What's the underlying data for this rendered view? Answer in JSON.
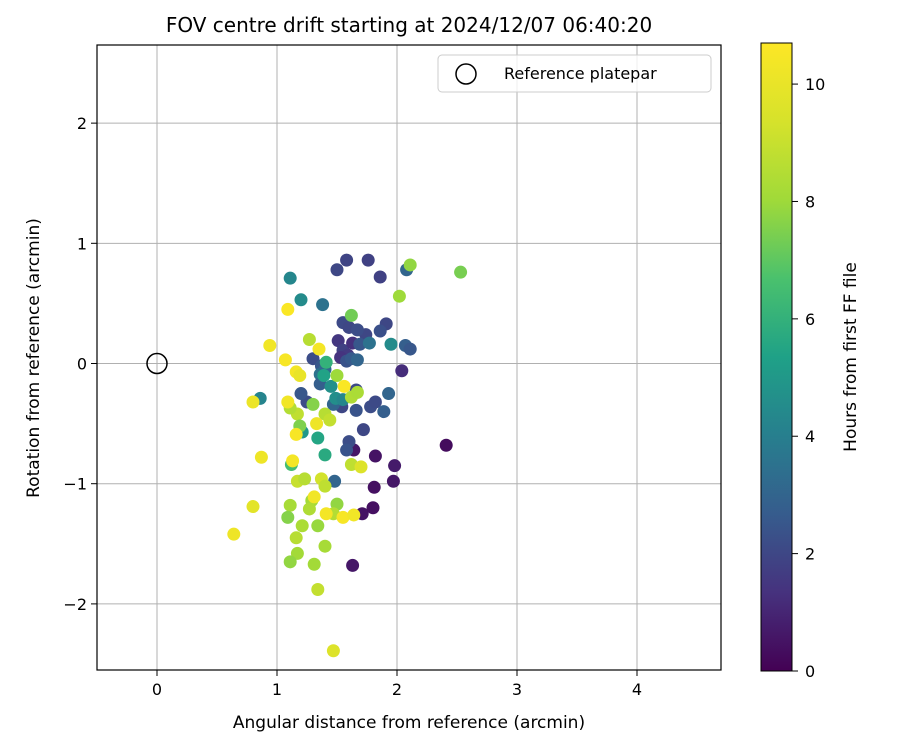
{
  "chart_data": {
    "type": "scatter",
    "title": "FOV centre drift starting at 2024/12/07 06:40:20",
    "xlabel": "Angular distance from reference (arcmin)",
    "ylabel": "Rotation from reference (arcmin)",
    "xlim": [
      -0.5,
      4.7
    ],
    "ylim": [
      -2.55,
      2.65
    ],
    "x_ticks": [
      0,
      1,
      2,
      3,
      4
    ],
    "y_ticks": [
      -2,
      -1,
      0,
      1,
      2
    ],
    "grid": true,
    "legend": {
      "position": "top-right",
      "entries": [
        "Reference platepar"
      ]
    },
    "reference_point": {
      "x": 0,
      "y": 0,
      "label": "Reference platepar"
    },
    "colorbar": {
      "label": "Hours from first FF file",
      "range": [
        0,
        10.7
      ],
      "ticks": [
        0,
        2,
        4,
        6,
        8,
        10
      ],
      "colormap": "viridis"
    },
    "points": [
      {
        "x": 2.41,
        "y": -0.68,
        "h": 0.3
      },
      {
        "x": 1.63,
        "y": -1.68,
        "h": 0.6
      },
      {
        "x": 1.71,
        "y": -1.25,
        "h": 0.5
      },
      {
        "x": 1.8,
        "y": -1.2,
        "h": 0.4
      },
      {
        "x": 1.81,
        "y": -1.03,
        "h": 0.4
      },
      {
        "x": 1.97,
        "y": -0.98,
        "h": 0.6
      },
      {
        "x": 1.98,
        "y": -0.85,
        "h": 0.7
      },
      {
        "x": 1.82,
        "y": -0.77,
        "h": 0.5
      },
      {
        "x": 1.64,
        "y": -0.72,
        "h": 0.6
      },
      {
        "x": 2.04,
        "y": -0.06,
        "h": 1.2
      },
      {
        "x": 1.6,
        "y": -0.65,
        "h": 2.2
      },
      {
        "x": 1.72,
        "y": -0.55,
        "h": 2.0
      },
      {
        "x": 1.58,
        "y": -0.72,
        "h": 2.4
      },
      {
        "x": 1.54,
        "y": -0.36,
        "h": 2.0
      },
      {
        "x": 1.66,
        "y": -0.39,
        "h": 2.4
      },
      {
        "x": 1.78,
        "y": -0.36,
        "h": 2.2
      },
      {
        "x": 1.82,
        "y": -0.32,
        "h": 2.1
      },
      {
        "x": 1.89,
        "y": -0.4,
        "h": 2.8
      },
      {
        "x": 1.93,
        "y": -0.25,
        "h": 3.0
      },
      {
        "x": 1.66,
        "y": -0.22,
        "h": 2.1
      },
      {
        "x": 1.58,
        "y": 0.86,
        "h": 1.9
      },
      {
        "x": 1.5,
        "y": 0.78,
        "h": 2.0
      },
      {
        "x": 1.76,
        "y": 0.86,
        "h": 1.8
      },
      {
        "x": 1.86,
        "y": 0.72,
        "h": 1.8
      },
      {
        "x": 2.08,
        "y": 0.78,
        "h": 3.0
      },
      {
        "x": 1.55,
        "y": 0.34,
        "h": 2.1
      },
      {
        "x": 1.6,
        "y": 0.3,
        "h": 2.0
      },
      {
        "x": 1.91,
        "y": 0.33,
        "h": 2.0
      },
      {
        "x": 1.86,
        "y": 0.27,
        "h": 2.3
      },
      {
        "x": 1.74,
        "y": 0.24,
        "h": 2.0
      },
      {
        "x": 1.67,
        "y": 0.28,
        "h": 2.2
      },
      {
        "x": 1.51,
        "y": 0.19,
        "h": 1.5
      },
      {
        "x": 1.55,
        "y": 0.11,
        "h": 1.8
      },
      {
        "x": 1.59,
        "y": 0.07,
        "h": 1.6
      },
      {
        "x": 1.53,
        "y": 0.05,
        "h": 1.4
      },
      {
        "x": 1.63,
        "y": 0.17,
        "h": 1.3
      },
      {
        "x": 1.69,
        "y": 0.16,
        "h": 2.5
      },
      {
        "x": 1.58,
        "y": 0.02,
        "h": 2.4
      },
      {
        "x": 1.62,
        "y": 0.04,
        "h": 2.6
      },
      {
        "x": 1.67,
        "y": 0.03,
        "h": 3.0
      },
      {
        "x": 2.07,
        "y": 0.15,
        "h": 2.8
      },
      {
        "x": 2.11,
        "y": 0.12,
        "h": 2.5
      },
      {
        "x": 1.77,
        "y": 0.17,
        "h": 3.5
      },
      {
        "x": 1.3,
        "y": 0.04,
        "h": 2.2
      },
      {
        "x": 1.37,
        "y": -0.02,
        "h": 2.5
      },
      {
        "x": 1.36,
        "y": -0.09,
        "h": 3.5
      },
      {
        "x": 1.36,
        "y": -0.17,
        "h": 2.8
      },
      {
        "x": 1.4,
        "y": -0.05,
        "h": 3.2
      },
      {
        "x": 1.47,
        "y": -0.34,
        "h": 3.0
      },
      {
        "x": 1.25,
        "y": -0.32,
        "h": 2.2
      },
      {
        "x": 1.2,
        "y": -0.25,
        "h": 2.5
      },
      {
        "x": 1.48,
        "y": -0.98,
        "h": 3.0
      },
      {
        "x": 1.38,
        "y": 0.49,
        "h": 3.5
      },
      {
        "x": 1.11,
        "y": 0.71,
        "h": 4.3
      },
      {
        "x": 1.2,
        "y": 0.53,
        "h": 4.5
      },
      {
        "x": 1.95,
        "y": 0.16,
        "h": 4.5
      },
      {
        "x": 0.86,
        "y": -0.29,
        "h": 4.2
      },
      {
        "x": 1.49,
        "y": -0.29,
        "h": 4.6
      },
      {
        "x": 1.55,
        "y": -0.3,
        "h": 4.3
      },
      {
        "x": 1.39,
        "y": -0.1,
        "h": 5.4
      },
      {
        "x": 1.45,
        "y": -0.19,
        "h": 4.7
      },
      {
        "x": 1.34,
        "y": -0.62,
        "h": 5.5
      },
      {
        "x": 1.4,
        "y": -0.76,
        "h": 5.7
      },
      {
        "x": 1.41,
        "y": 0.01,
        "h": 6.0
      },
      {
        "x": 1.21,
        "y": -0.57,
        "h": 5.0
      },
      {
        "x": 1.12,
        "y": -0.84,
        "h": 6.5
      },
      {
        "x": 2.53,
        "y": 0.76,
        "h": 7.4
      },
      {
        "x": 2.11,
        "y": 0.82,
        "h": 7.8
      },
      {
        "x": 2.02,
        "y": 0.56,
        "h": 8.0
      },
      {
        "x": 1.62,
        "y": 0.4,
        "h": 7.3
      },
      {
        "x": 1.27,
        "y": 0.2,
        "h": 8.6
      },
      {
        "x": 1.5,
        "y": -0.1,
        "h": 8.0
      },
      {
        "x": 1.62,
        "y": -0.28,
        "h": 8.4
      },
      {
        "x": 1.67,
        "y": -0.24,
        "h": 8.3
      },
      {
        "x": 1.4,
        "y": -0.42,
        "h": 8.6
      },
      {
        "x": 1.44,
        "y": -0.47,
        "h": 8.9
      },
      {
        "x": 1.3,
        "y": -0.34,
        "h": 7.6
      },
      {
        "x": 1.17,
        "y": -0.42,
        "h": 8.8
      },
      {
        "x": 1.19,
        "y": -0.52,
        "h": 7.5
      },
      {
        "x": 1.11,
        "y": -0.37,
        "h": 8.5
      },
      {
        "x": 1.62,
        "y": -0.84,
        "h": 8.8
      },
      {
        "x": 1.7,
        "y": -0.86,
        "h": 9.6
      },
      {
        "x": 1.17,
        "y": -0.98,
        "h": 9.0
      },
      {
        "x": 1.23,
        "y": -0.96,
        "h": 8.6
      },
      {
        "x": 1.29,
        "y": -1.14,
        "h": 8.1
      },
      {
        "x": 1.37,
        "y": -0.96,
        "h": 9.3
      },
      {
        "x": 1.4,
        "y": -1.02,
        "h": 8.8
      },
      {
        "x": 1.27,
        "y": -1.21,
        "h": 8.4
      },
      {
        "x": 1.11,
        "y": -1.18,
        "h": 8.2
      },
      {
        "x": 1.09,
        "y": -1.28,
        "h": 7.6
      },
      {
        "x": 1.21,
        "y": -1.35,
        "h": 8.3
      },
      {
        "x": 1.34,
        "y": -1.35,
        "h": 7.9
      },
      {
        "x": 1.5,
        "y": -1.17,
        "h": 7.8
      },
      {
        "x": 1.47,
        "y": -1.25,
        "h": 8.5
      },
      {
        "x": 1.16,
        "y": -1.45,
        "h": 8.6
      },
      {
        "x": 1.17,
        "y": -1.58,
        "h": 8.1
      },
      {
        "x": 1.11,
        "y": -1.65,
        "h": 7.8
      },
      {
        "x": 1.31,
        "y": -1.67,
        "h": 8.1
      },
      {
        "x": 1.4,
        "y": -1.52,
        "h": 8.2
      },
      {
        "x": 1.34,
        "y": -1.88,
        "h": 8.9
      },
      {
        "x": 1.47,
        "y": -2.39,
        "h": 9.6
      },
      {
        "x": 1.09,
        "y": 0.45,
        "h": 10.6
      },
      {
        "x": 0.94,
        "y": 0.15,
        "h": 10.3
      },
      {
        "x": 1.07,
        "y": 0.03,
        "h": 10.5
      },
      {
        "x": 1.16,
        "y": -0.07,
        "h": 10.4
      },
      {
        "x": 1.19,
        "y": -0.1,
        "h": 10.0
      },
      {
        "x": 1.35,
        "y": 0.12,
        "h": 10.4
      },
      {
        "x": 1.56,
        "y": -0.19,
        "h": 10.6
      },
      {
        "x": 0.8,
        "y": -0.32,
        "h": 10.1
      },
      {
        "x": 1.09,
        "y": -0.32,
        "h": 10.3
      },
      {
        "x": 1.33,
        "y": -0.5,
        "h": 10.2
      },
      {
        "x": 1.16,
        "y": -0.59,
        "h": 10.5
      },
      {
        "x": 0.87,
        "y": -0.78,
        "h": 10.2
      },
      {
        "x": 1.13,
        "y": -0.81,
        "h": 10.4
      },
      {
        "x": 1.31,
        "y": -1.11,
        "h": 10.3
      },
      {
        "x": 1.41,
        "y": -1.25,
        "h": 10.4
      },
      {
        "x": 1.55,
        "y": -1.28,
        "h": 10.5
      },
      {
        "x": 1.64,
        "y": -1.26,
        "h": 10.3
      },
      {
        "x": 0.8,
        "y": -1.19,
        "h": 9.8
      },
      {
        "x": 0.64,
        "y": -1.42,
        "h": 10.2
      }
    ]
  }
}
